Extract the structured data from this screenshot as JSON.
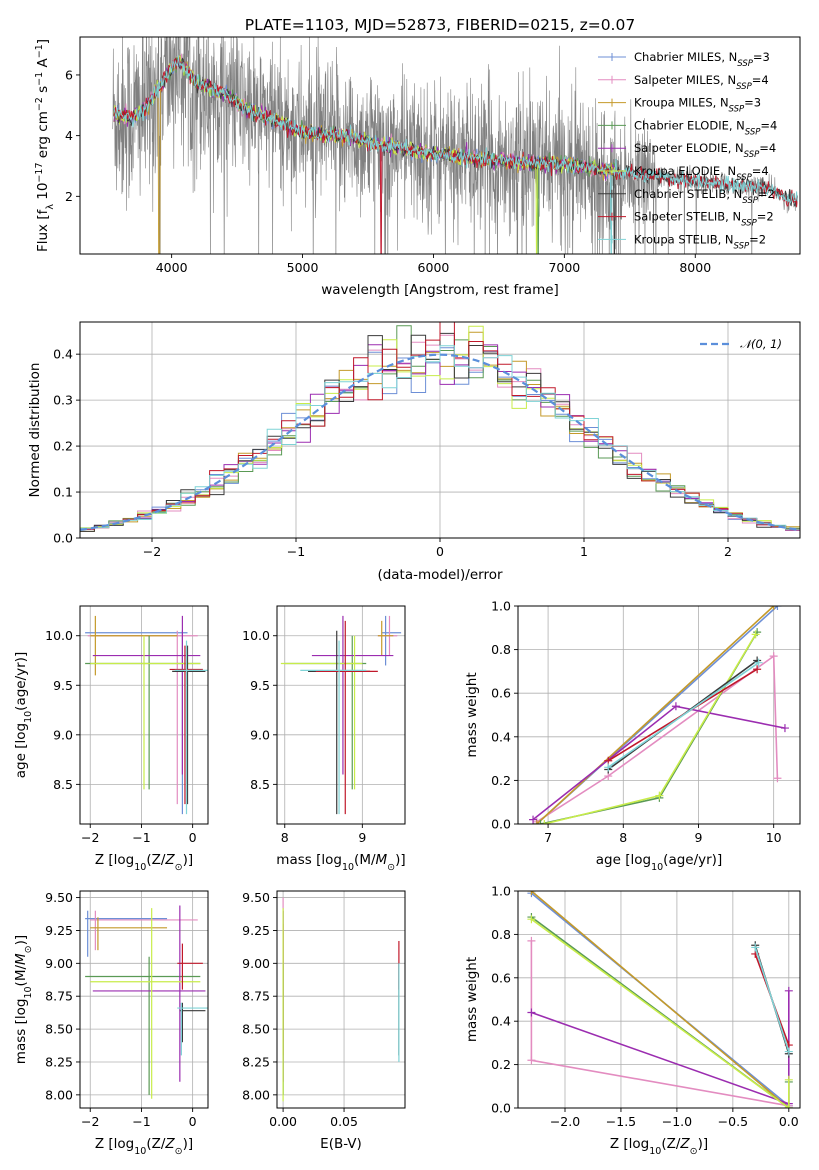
{
  "figure": {
    "title": "PLATE=1103, MJD=52873, FIBERID=0215, z=0.07"
  },
  "colors": {
    "data_line": "#808080",
    "axis": "#000000",
    "grid": "#b0b0b0",
    "normal_dashed": "#5b8fdb"
  },
  "models": [
    {
      "name": "Chabrier MILES",
      "n_ssp": 3,
      "label": "Chabrier MILES, N_SSP=3",
      "color": "#6d8fd6"
    },
    {
      "name": "Salpeter MILES",
      "n_ssp": 4,
      "label": "Salpeter MILES, N_SSP=4",
      "color": "#e38cc0"
    },
    {
      "name": "Kroupa MILES",
      "n_ssp": 3,
      "label": "Kroupa MILES, N_SSP=3",
      "color": "#c49a2a"
    },
    {
      "name": "Chabrier ELODIE",
      "n_ssp": 4,
      "label": "Chabrier ELODIE, N_SSP=4",
      "color": "#5a9a55"
    },
    {
      "name": "Salpeter ELODIE",
      "n_ssp": 4,
      "label": "Salpeter ELODIE, N_SSP=4",
      "color": "#9b2db0"
    },
    {
      "name": "Kroupa ELODIE",
      "n_ssp": 4,
      "label": "Kroupa ELODIE, N_SSP=4",
      "color": "#c8ec4a"
    },
    {
      "name": "Chabrier STELIB",
      "n_ssp": 2,
      "label": "Chabrier STELIB, N_SSP=2",
      "color": "#3a3a3a"
    },
    {
      "name": "Salpeter STELIB",
      "n_ssp": 2,
      "label": "Salpeter STELIB, N_SSP=2",
      "color": "#c0182a"
    },
    {
      "name": "Kroupa STELIB",
      "n_ssp": 2,
      "label": "Kroupa STELIB, N_SSP=2",
      "color": "#7fd3d6"
    }
  ],
  "chart_data": [
    {
      "id": "spectrum",
      "type": "line",
      "xlabel": "wavelength [Angstrom, rest frame]",
      "ylabel": "Flux [f_λ 10^-17 erg cm^-2 s^-1 A^-1]",
      "xlim": [
        3300,
        8800
      ],
      "ylim": [
        0.1,
        7.25
      ],
      "xticks": [
        4000,
        5000,
        6000,
        7000,
        8000
      ],
      "yticks": [
        2,
        4,
        6
      ],
      "grid": false,
      "legend": "right",
      "continuum_points": [
        [
          3550,
          4.7
        ],
        [
          3700,
          4.6
        ],
        [
          3800,
          4.9
        ],
        [
          3950,
          5.9
        ],
        [
          4050,
          6.5
        ],
        [
          4200,
          5.7
        ],
        [
          4400,
          5.4
        ],
        [
          4600,
          4.8
        ],
        [
          4800,
          4.5
        ],
        [
          5000,
          4.1
        ],
        [
          5300,
          4.0
        ],
        [
          5600,
          3.7
        ],
        [
          6000,
          3.4
        ],
        [
          6300,
          3.25
        ],
        [
          6600,
          3.15
        ],
        [
          7000,
          3.05
        ],
        [
          7400,
          2.8
        ],
        [
          7800,
          2.6
        ],
        [
          8200,
          2.4
        ],
        [
          8500,
          2.3
        ],
        [
          8600,
          2.2
        ],
        [
          8700,
          1.9
        ]
      ],
      "data_noise_amplitude": 1.2,
      "data_extent": [
        3550,
        8780
      ]
    },
    {
      "id": "residual-histogram",
      "type": "bar",
      "xlabel": "(data-model)/error",
      "ylabel": "Normed distribution",
      "xlim": [
        -2.5,
        2.5
      ],
      "ylim": [
        0.0,
        0.47
      ],
      "xticks": [
        -2,
        -1,
        0,
        1,
        2
      ],
      "yticks": [
        0.0,
        0.1,
        0.2,
        0.3,
        0.4
      ],
      "grid": true,
      "legend": "top-right",
      "legend_label": "𝒩(0, 1)",
      "bin_width": 0.1,
      "bins_start": -2.5,
      "normal_curve": {
        "mean": 0,
        "sigma": 1
      }
    },
    {
      "id": "age-vs-Z",
      "type": "scatter",
      "xlabel": "Z [log10(Z/Z⊙)]",
      "ylabel": "age [log10(age/yr)]",
      "xlim": [
        -2.2,
        0.3
      ],
      "ylim": [
        8.1,
        10.3
      ],
      "xticks": [
        -2,
        -1,
        0
      ],
      "yticks": [
        8.5,
        9.0,
        9.5,
        10.0
      ],
      "grid": true,
      "crosses": [
        {
          "model": 0,
          "x": [
            -2.1,
            -0.1
          ],
          "y": [
            8.2,
            10.05
          ],
          "xc": -0.2,
          "yc": 10.03
        },
        {
          "model": 1,
          "x": [
            -2.05,
            0.1
          ],
          "y": [
            8.3,
            10.05
          ],
          "xc": -0.3,
          "yc": 10.0
        },
        {
          "model": 2,
          "x": [
            -2.0,
            -0.3
          ],
          "y": [
            9.6,
            10.2
          ],
          "xc": -1.9,
          "yc": 10.0
        },
        {
          "model": 3,
          "x": [
            -2.1,
            0.15
          ],
          "y": [
            8.45,
            10.0
          ],
          "xc": -0.85,
          "yc": 9.72
        },
        {
          "model": 4,
          "x": [
            -1.95,
            0.15
          ],
          "y": [
            8.6,
            10.2
          ],
          "xc": -0.2,
          "yc": 9.8
        },
        {
          "model": 5,
          "x": [
            -2.0,
            0.15
          ],
          "y": [
            8.45,
            10.0
          ],
          "xc": -0.95,
          "yc": 9.72
        },
        {
          "model": 6,
          "x": [
            -0.4,
            0.25
          ],
          "y": [
            8.3,
            9.9
          ],
          "xc": -0.1,
          "yc": 9.64
        },
        {
          "model": 7,
          "x": [
            -0.45,
            0.2
          ],
          "y": [
            8.3,
            9.9
          ],
          "xc": -0.15,
          "yc": 9.66
        },
        {
          "model": 8,
          "x": [
            -0.35,
            0.3
          ],
          "y": [
            8.2,
            9.95
          ],
          "xc": -0.12,
          "yc": 9.65
        }
      ]
    },
    {
      "id": "age-vs-mass",
      "type": "scatter",
      "xlabel": "mass [log10(M/M⊙)]",
      "ylabel": "",
      "xlim": [
        7.9,
        9.55
      ],
      "ylim": [
        8.1,
        10.3
      ],
      "xticks": [
        8,
        9
      ],
      "yticks": [
        8.5,
        9.0,
        9.5,
        10.0
      ],
      "grid": true,
      "crosses": [
        {
          "model": 0,
          "x": [
            9.25,
            9.5
          ],
          "y": [
            9.7,
            10.2
          ],
          "xc": 9.3,
          "yc": 10.03
        },
        {
          "model": 1,
          "x": [
            9.2,
            9.45
          ],
          "y": [
            9.8,
            10.2
          ],
          "xc": 9.35,
          "yc": 10.0
        },
        {
          "model": 2,
          "x": [
            9.2,
            9.4
          ],
          "y": [
            9.8,
            10.15
          ],
          "xc": 9.25,
          "yc": 10.0
        },
        {
          "model": 3,
          "x": [
            8.0,
            9.05
          ],
          "y": [
            8.45,
            10.0
          ],
          "xc": 8.87,
          "yc": 9.72
        },
        {
          "model": 4,
          "x": [
            8.35,
            9.4
          ],
          "y": [
            8.6,
            10.2
          ],
          "xc": 8.75,
          "yc": 9.8
        },
        {
          "model": 5,
          "x": [
            7.95,
            9.0
          ],
          "y": [
            8.45,
            10.0
          ],
          "xc": 8.9,
          "yc": 9.72
        },
        {
          "model": 6,
          "x": [
            8.3,
            9.1
          ],
          "y": [
            8.2,
            10.05
          ],
          "xc": 8.67,
          "yc": 9.64
        },
        {
          "model": 7,
          "x": [
            8.4,
            9.2
          ],
          "y": [
            8.2,
            10.15
          ],
          "xc": 8.78,
          "yc": 9.64
        },
        {
          "model": 8,
          "x": [
            8.2,
            9.05
          ],
          "y": [
            8.2,
            9.95
          ],
          "xc": 8.7,
          "yc": 9.65
        }
      ]
    },
    {
      "id": "mass-weight-vs-age",
      "type": "line",
      "xlabel": "age [log10(age/yr)]",
      "ylabel": "mass weight",
      "xlim": [
        6.6,
        10.35
      ],
      "ylim": [
        0.0,
        1.0
      ],
      "xticks": [
        7,
        8,
        9,
        10
      ],
      "yticks": [
        0.0,
        0.2,
        0.4,
        0.6,
        0.8,
        1.0
      ],
      "grid": true,
      "series": [
        {
          "model": 0,
          "x": [
            6.85,
            10.05
          ],
          "y": [
            0.0,
            1.0
          ]
        },
        {
          "model": 1,
          "x": [
            6.85,
            7.8,
            10.0,
            10.05
          ],
          "y": [
            0.01,
            0.22,
            0.77,
            0.21
          ]
        },
        {
          "model": 2,
          "x": [
            6.85,
            10.0
          ],
          "y": [
            0.0,
            1.0
          ]
        },
        {
          "model": 3,
          "x": [
            6.9,
            8.48,
            9.78
          ],
          "y": [
            0.0,
            0.12,
            0.88
          ]
        },
        {
          "model": 4,
          "x": [
            6.8,
            8.7,
            10.15
          ],
          "y": [
            0.02,
            0.54,
            0.44
          ]
        },
        {
          "model": 5,
          "x": [
            6.95,
            8.48,
            9.76
          ],
          "y": [
            0.0,
            0.13,
            0.87
          ]
        },
        {
          "model": 6,
          "x": [
            7.8,
            9.78
          ],
          "y": [
            0.25,
            0.75
          ]
        },
        {
          "model": 7,
          "x": [
            7.8,
            9.78
          ],
          "y": [
            0.29,
            0.71
          ]
        },
        {
          "model": 8,
          "x": [
            7.8,
            9.8
          ],
          "y": [
            0.26,
            0.74
          ]
        }
      ]
    },
    {
      "id": "mass-vs-Z",
      "type": "scatter",
      "xlabel": "Z [log10(Z/Z⊙)]",
      "ylabel": "mass [log10(M/M⊙)]",
      "xlim": [
        -2.2,
        0.3
      ],
      "ylim": [
        7.9,
        9.55
      ],
      "xticks": [
        -2,
        -1,
        0
      ],
      "yticks": [
        8.0,
        8.25,
        8.5,
        8.75,
        9.0,
        9.25,
        9.5
      ],
      "grid": true,
      "crosses": [
        {
          "model": 0,
          "x": [
            -2.1,
            -0.5
          ],
          "y": [
            9.05,
            9.4
          ],
          "xc": -2.05,
          "yc": 9.34
        },
        {
          "model": 1,
          "x": [
            -2.0,
            0.1
          ],
          "y": [
            9.1,
            9.4
          ],
          "xc": -1.9,
          "yc": 9.33
        },
        {
          "model": 2,
          "x": [
            -2.0,
            -0.5
          ],
          "y": [
            9.1,
            9.35
          ],
          "xc": -1.85,
          "yc": 9.27
        },
        {
          "model": 3,
          "x": [
            -2.1,
            0.15
          ],
          "y": [
            8.0,
            9.05
          ],
          "xc": -0.85,
          "yc": 8.9
        },
        {
          "model": 4,
          "x": [
            -1.95,
            0.25
          ],
          "y": [
            8.1,
            9.44
          ],
          "xc": -0.25,
          "yc": 8.79
        },
        {
          "model": 5,
          "x": [
            -2.0,
            0.15
          ],
          "y": [
            7.97,
            9.42
          ],
          "xc": -0.8,
          "yc": 8.86
        },
        {
          "model": 6,
          "x": [
            -0.25,
            0.25
          ],
          "y": [
            8.4,
            8.7
          ],
          "xc": -0.2,
          "yc": 8.64
        },
        {
          "model": 7,
          "x": [
            -0.3,
            0.2
          ],
          "y": [
            8.8,
            9.15
          ],
          "xc": -0.2,
          "yc": 9.0
        },
        {
          "model": 8,
          "x": [
            -0.3,
            0.3
          ],
          "y": [
            8.3,
            8.7
          ],
          "xc": -0.22,
          "yc": 8.66
        }
      ]
    },
    {
      "id": "mass-vs-ebv",
      "type": "scatter",
      "xlabel": "E(B-V)",
      "ylabel": "",
      "xlim": [
        -0.005,
        0.1
      ],
      "ylim": [
        7.9,
        9.55
      ],
      "xticks": [
        0.0,
        0.05
      ],
      "yticks": [
        8.0,
        8.25,
        8.5,
        8.75,
        9.0,
        9.25,
        9.5
      ],
      "grid": true,
      "crosses": [
        {
          "model": 0,
          "x": [
            0.0,
            0.0
          ],
          "y": [
            8.0,
            9.4
          ],
          "xc": 0.0,
          "yc": 9.3
        },
        {
          "model": 1,
          "x": [
            0.0,
            0.0
          ],
          "y": [
            8.4,
            9.5
          ],
          "xc": 0.0,
          "yc": 9.42
        },
        {
          "model": 2,
          "x": [
            0.0,
            0.0
          ],
          "y": [
            8.3,
            9.3
          ],
          "xc": 0.0,
          "yc": 9.2
        },
        {
          "model": 3,
          "x": [
            0.0,
            0.0
          ],
          "y": [
            8.0,
            9.0
          ],
          "xc": 0.0,
          "yc": 8.9
        },
        {
          "model": 4,
          "x": [
            0.0,
            0.0
          ],
          "y": [
            8.1,
            9.4
          ],
          "xc": 0.0,
          "yc": 8.8
        },
        {
          "model": 5,
          "x": [
            0.0,
            0.0
          ],
          "y": [
            7.95,
            9.42
          ],
          "xc": 0.0,
          "yc": 8.9
        },
        {
          "model": 6,
          "x": [
            0.095,
            0.095
          ],
          "y": [
            8.3,
            9.0
          ],
          "xc": 0.095,
          "yc": 8.65
        },
        {
          "model": 7,
          "x": [
            0.095,
            0.095
          ],
          "y": [
            8.8,
            9.17
          ],
          "xc": 0.095,
          "yc": 9.05
        },
        {
          "model": 8,
          "x": [
            0.095,
            0.095
          ],
          "y": [
            8.25,
            9.0
          ],
          "xc": 0.095,
          "yc": 8.65
        }
      ]
    },
    {
      "id": "mass-weight-vs-Z",
      "type": "line",
      "xlabel": "Z [log10(Z/Z⊙)]",
      "ylabel": "mass weight",
      "xlim": [
        -2.42,
        0.1
      ],
      "ylim": [
        0.0,
        1.0
      ],
      "xticks": [
        -2.0,
        -1.5,
        -1.0,
        -0.5,
        0.0
      ],
      "yticks": [
        0.0,
        0.2,
        0.4,
        0.6,
        0.8,
        1.0
      ],
      "grid": true,
      "series": [
        {
          "model": 0,
          "x": [
            -2.3,
            0.0
          ],
          "y": [
            0.99,
            0.01
          ]
        },
        {
          "model": 1,
          "x": [
            -2.3,
            -2.3,
            0.0,
            0.0
          ],
          "y": [
            0.77,
            0.22,
            0.01,
            0.0
          ]
        },
        {
          "model": 2,
          "x": [
            -2.3,
            0.0
          ],
          "y": [
            1.0,
            0.0
          ]
        },
        {
          "model": 3,
          "x": [
            -2.3,
            0.0,
            0.0
          ],
          "y": [
            0.88,
            0.0,
            0.12
          ]
        },
        {
          "model": 4,
          "x": [
            -2.3,
            0.0,
            0.0
          ],
          "y": [
            0.44,
            0.02,
            0.54
          ]
        },
        {
          "model": 5,
          "x": [
            -2.3,
            0.0,
            0.0
          ],
          "y": [
            0.87,
            0.0,
            0.13
          ]
        },
        {
          "model": 6,
          "x": [
            -0.3,
            0.0
          ],
          "y": [
            0.75,
            0.25
          ]
        },
        {
          "model": 7,
          "x": [
            -0.3,
            0.0
          ],
          "y": [
            0.71,
            0.29
          ]
        },
        {
          "model": 8,
          "x": [
            -0.3,
            0.0
          ],
          "y": [
            0.74,
            0.26
          ]
        }
      ]
    }
  ]
}
